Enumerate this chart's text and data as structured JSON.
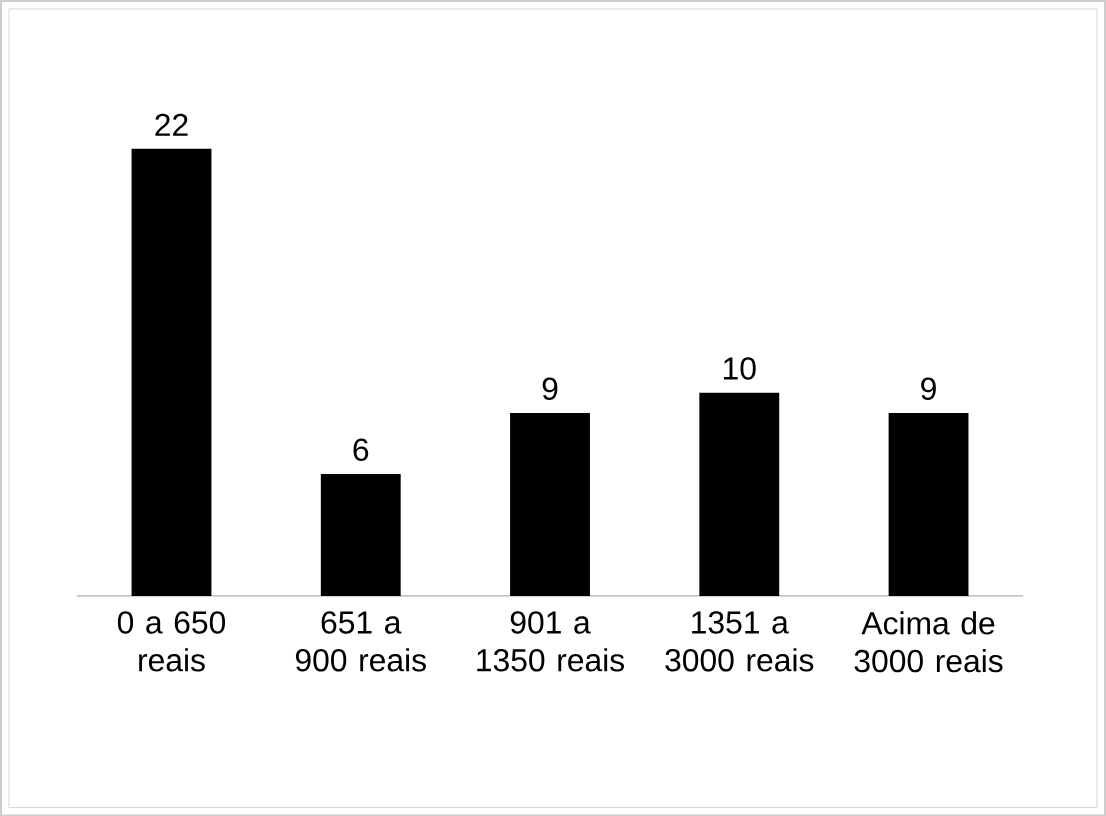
{
  "chart_data": {
    "type": "bar",
    "categories": [
      "0 a 650 reais",
      "651 a 900 reais",
      "901 a 1350 reais",
      "1351 a 3000 reais",
      "Acima de 3000 reais"
    ],
    "values": [
      22,
      6,
      9,
      10,
      9
    ],
    "color": "#000000",
    "data_labels": true
  }
}
